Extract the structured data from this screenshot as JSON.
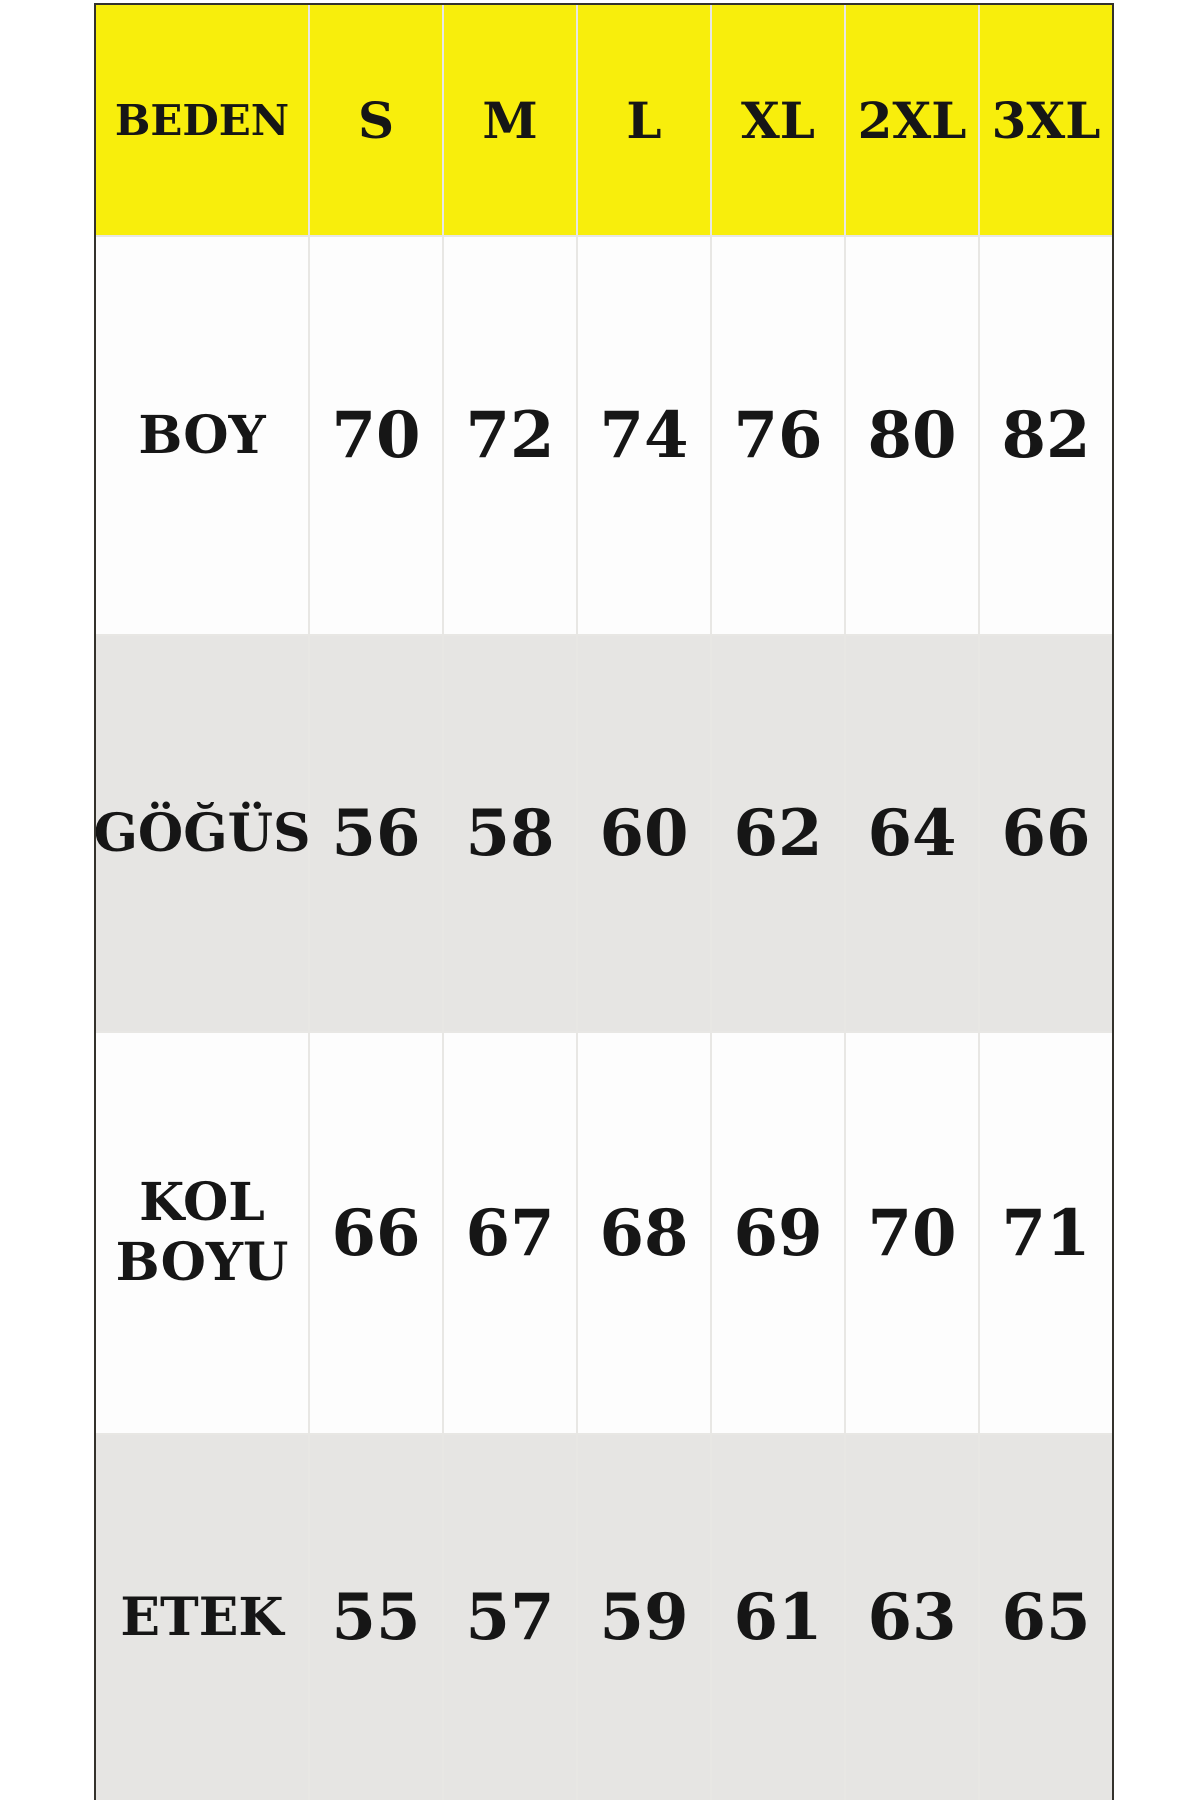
{
  "chart_data": {
    "type": "table",
    "header_label": "BEDEN",
    "categories": [
      "S",
      "M",
      "L",
      "XL",
      "2XL",
      "3XL"
    ],
    "series": [
      {
        "name": "BOY",
        "values": [
          70,
          72,
          74,
          76,
          80,
          82
        ]
      },
      {
        "name": "GÖĞÜS",
        "values": [
          56,
          58,
          60,
          62,
          64,
          66
        ]
      },
      {
        "name": "KOL BOYU",
        "values": [
          66,
          67,
          68,
          69,
          70,
          71
        ]
      },
      {
        "name": "ETEK",
        "values": [
          55,
          57,
          59,
          61,
          63,
          65
        ]
      }
    ],
    "layout": {
      "header_row_highlighted": true,
      "alternating_row_shading": true,
      "grid_on": true
    },
    "colors": {
      "header_bg": "#f8ee0c",
      "row_bg": "#fdfdfd",
      "row_alt_bg": "#e6e5e3",
      "outer_border": "#34322c",
      "grid_line": "#e8e7e4",
      "text": "#161616",
      "page_bg": "#ffffff"
    }
  }
}
